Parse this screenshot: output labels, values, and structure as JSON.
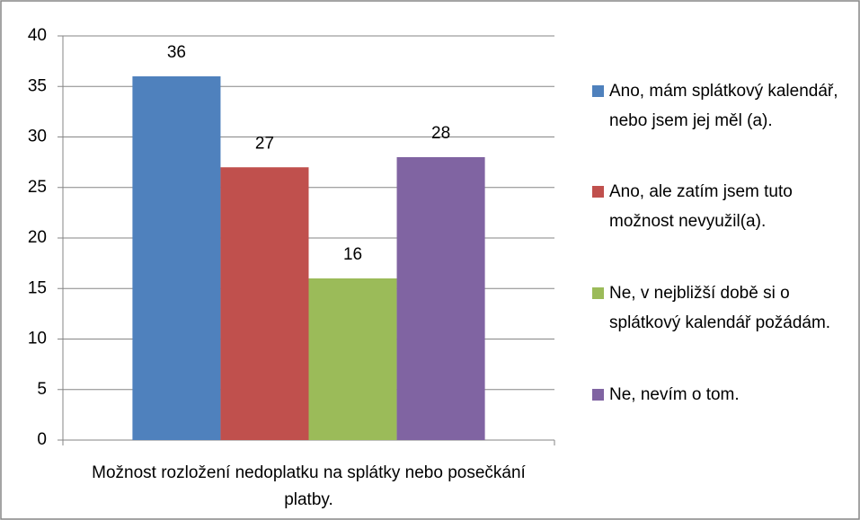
{
  "chart_data": {
    "type": "bar",
    "categories": [
      "Možnost rozložení nedoplatku na splátky nebo posečkání platby."
    ],
    "series": [
      {
        "name": "Ano, mám splátkový kalendář, nebo jsem jej měl (a).",
        "color": "#4f81bd",
        "values": [
          36
        ]
      },
      {
        "name": "Ano, ale zatím jsem tuto možnost nevyužil(a).",
        "color": "#c0504d",
        "values": [
          27
        ]
      },
      {
        "name": "Ne, v nejbližší době si o splátkový kalendář požádám.",
        "color": "#9bbb59",
        "values": [
          16
        ]
      },
      {
        "name": "Ne, nevím o tom.",
        "color": "#8064a2",
        "values": [
          28
        ]
      }
    ],
    "ylim": [
      0,
      40
    ],
    "yticks": [
      0,
      5,
      10,
      15,
      20,
      25,
      30,
      35,
      40
    ],
    "grid": true,
    "legend": "right",
    "data_labels": true
  }
}
